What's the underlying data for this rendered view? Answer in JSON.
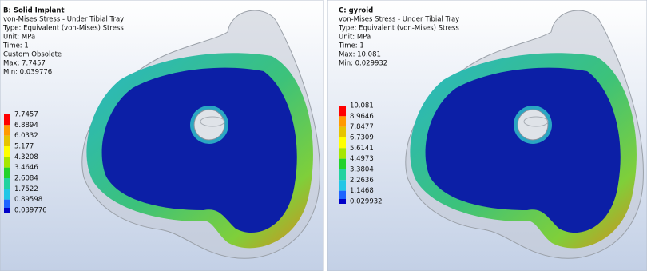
{
  "panels": [
    {
      "title": "B: Solid Implant",
      "lines": [
        "von-Mises Stress - Under Tibial Tray",
        "Type: Equivalent (von-Mises) Stress",
        "Unit: MPa",
        "Time: 1",
        "Custom Obsolete",
        "Max: 7.7457",
        "Min: 0.039776"
      ],
      "legend": [
        "7.7457",
        "6.8894",
        "6.0332",
        "5.177",
        "4.3208",
        "3.4646",
        "2.6084",
        "1.7522",
        "0.89598",
        "0.039776"
      ]
    },
    {
      "title": "C: gyroid",
      "lines": [
        "von-Mises Stress - Under Tibial Tray",
        "Type: Equivalent (von-Mises) Stress",
        "Unit: MPa",
        "Time: 1",
        "Max: 10.081",
        "Min: 0.029932"
      ],
      "legend": [
        "10.081",
        "8.9646",
        "7.8477",
        "6.7309",
        "5.6141",
        "4.4973",
        "3.3804",
        "2.2636",
        "1.1468",
        "0.029932"
      ]
    }
  ]
}
